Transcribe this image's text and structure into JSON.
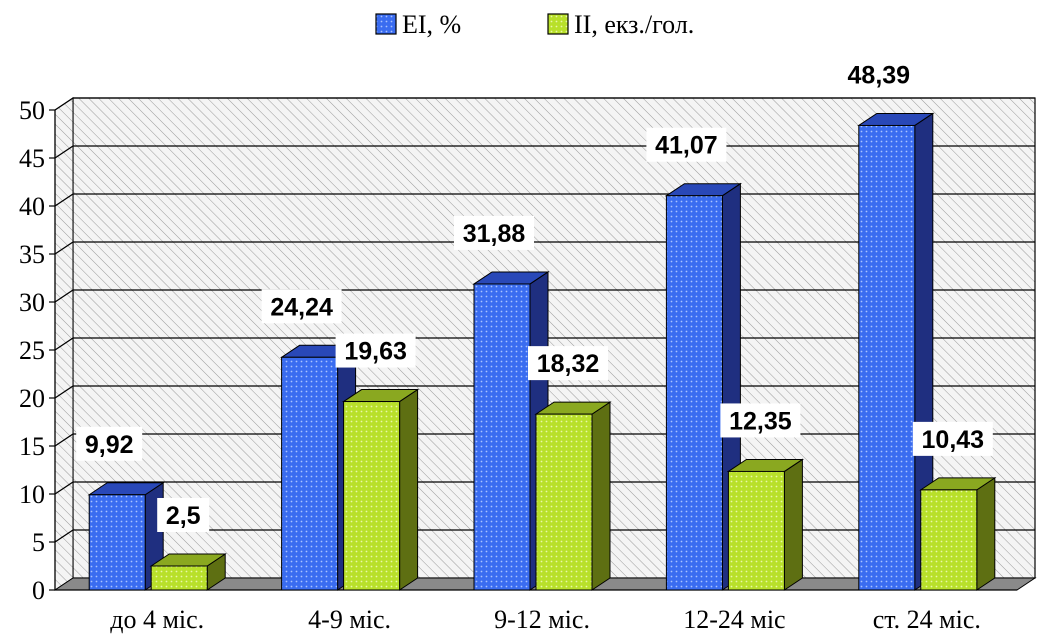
{
  "chart_data": {
    "type": "bar",
    "categories": [
      "до 4 міс.",
      "4-9 міс.",
      "9-12 міс.",
      "12-24 міс",
      "ст. 24 міс."
    ],
    "series": [
      {
        "name": "EI, %",
        "values": [
          9.92,
          24.24,
          31.88,
          41.07,
          48.39
        ],
        "labels": [
          "9,92",
          "24,24",
          "31,88",
          "41,07",
          "48,39"
        ]
      },
      {
        "name": "II, екз./гол.",
        "values": [
          2.5,
          19.63,
          18.32,
          12.35,
          10.43
        ],
        "labels": [
          "2,5",
          "19,63",
          "18,32",
          "12,35",
          "10,43"
        ]
      }
    ],
    "ylim": [
      0,
      50
    ],
    "yticks": [
      "0",
      "5",
      "10",
      "15",
      "20",
      "25",
      "30",
      "35",
      "40",
      "45",
      "50"
    ],
    "grid": true,
    "legend_position": "top-center",
    "title": "",
    "xlabel": "",
    "ylabel": "",
    "colors": {
      "series1_front": "#3a6cf0",
      "series1_top": "#2948b8",
      "series1_side": "#1f2f80",
      "series2_front": "#b8e02a",
      "series2_top": "#8aa820",
      "series2_side": "#5e6f12",
      "back_wall": "#e6e6e6",
      "floor": "#8a8a8a"
    }
  }
}
